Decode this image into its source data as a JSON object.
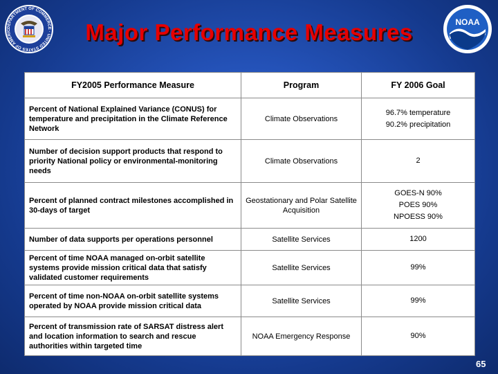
{
  "slide": {
    "title": "Major Performance Measures",
    "page_number": "65"
  },
  "logos": {
    "left_icon": "department-of-commerce-seal",
    "left_text": "DEPARTMENT OF COMMERCE · UNITED STATES OF AMERICA",
    "right_icon": "noaa-logo",
    "right_text": "NOAA"
  },
  "table": {
    "headers": {
      "measure": "FY2005 Performance Measure",
      "program": "Program",
      "goal": "FY 2006 Goal"
    },
    "rows": [
      {
        "measure": "Percent of National Explained Variance (CONUS) for temperature and precipitation in the Climate Reference Network",
        "program": "Climate Observations",
        "goal": [
          "96.7% temperature",
          "90.2% precipitation"
        ]
      },
      {
        "measure": "Number of decision support products that respond to priority National policy or environmental-monitoring needs",
        "program": "Climate Observations",
        "goal": [
          "2"
        ]
      },
      {
        "measure": "Percent of planned contract milestones accomplished in 30-days of target",
        "program": "Geostationary and Polar Satellite Acquisition",
        "goal": [
          "GOES-N 90%",
          "POES 90%",
          "NPOESS 90%"
        ]
      },
      {
        "measure": "Number of data supports per operations personnel",
        "program": "Satellite Services",
        "goal": [
          "1200"
        ]
      },
      {
        "measure": "Percent of time NOAA managed on-orbit satellite systems provide mission critical data that satisfy validated customer requirements",
        "program": "Satellite Services",
        "goal": [
          "99%"
        ]
      },
      {
        "measure": "Percent of time non-NOAA on-orbit satellite systems operated by NOAA provide mission critical data",
        "program": "Satellite Services",
        "goal": [
          "99%"
        ]
      },
      {
        "measure": "Percent of transmission rate of SARSAT distress alert and location information to search and rescue authorities within targeted time",
        "program": "NOAA Emergency Response",
        "goal": [
          "90%"
        ]
      }
    ]
  }
}
